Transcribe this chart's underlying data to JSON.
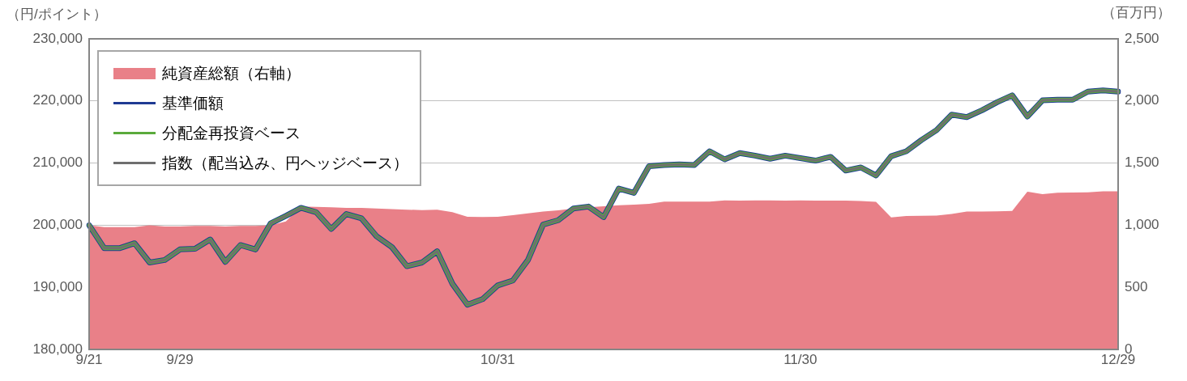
{
  "chart_data": {
    "type": "line",
    "ylabel": "（円/ポイント）",
    "y2label": "（百万円）",
    "categories": [
      "9/21",
      null,
      null,
      null,
      null,
      null,
      "9/29",
      null,
      null,
      null,
      null,
      null,
      null,
      null,
      null,
      null,
      null,
      null,
      null,
      null,
      null,
      null,
      null,
      null,
      null,
      null,
      null,
      "10/31",
      null,
      null,
      null,
      null,
      null,
      null,
      null,
      null,
      null,
      null,
      null,
      null,
      null,
      null,
      null,
      null,
      null,
      null,
      null,
      "11/30",
      null,
      null,
      null,
      null,
      null,
      null,
      null,
      null,
      null,
      null,
      null,
      null,
      null,
      null,
      null,
      null,
      null,
      null,
      null,
      null,
      "12/29"
    ],
    "series": [
      {
        "name": "純資産総額（右軸）",
        "type": "area",
        "axis": "y2",
        "color": "#e98088",
        "values": [
          1000,
          985,
          985,
          985,
          1000,
          990,
          990,
          995,
          995,
          990,
          995,
          995,
          1000,
          1030,
          1150,
          1148,
          1144,
          1140,
          1140,
          1135,
          1130,
          1125,
          1122,
          1125,
          1105,
          1068,
          1066,
          1068,
          1080,
          1095,
          1110,
          1120,
          1135,
          1145,
          1152,
          1160,
          1165,
          1172,
          1190,
          1190,
          1190,
          1190,
          1200,
          1198,
          1200,
          1200,
          1198,
          1200,
          1198,
          1198,
          1198,
          1195,
          1188,
          1063,
          1075,
          1076,
          1078,
          1090,
          1110,
          1110,
          1112,
          1115,
          1270,
          1250,
          1262,
          1263,
          1265,
          1272,
          1272
        ]
      },
      {
        "name": "基準価額",
        "color": "#1f3a93",
        "values": [
          200000,
          196300,
          196300,
          197100,
          194000,
          194400,
          196100,
          196200,
          197700,
          194100,
          196800,
          196100,
          200300,
          201500,
          202800,
          202100,
          199400,
          201800,
          201100,
          198200,
          196500,
          193400,
          194000,
          195800,
          190600,
          187200,
          188100,
          190300,
          191100,
          194400,
          200100,
          200800,
          202700,
          203000,
          201300,
          205900,
          205200,
          209500,
          209700,
          209800,
          209700,
          211900,
          210600,
          211600,
          211200,
          210700,
          211200,
          210800,
          210400,
          211000,
          208800,
          209300,
          208000,
          211100,
          211900,
          213700,
          215300,
          217800,
          217400,
          218500,
          219800,
          220900,
          217500,
          220100,
          220200,
          220200,
          221500,
          221700,
          221500
        ]
      },
      {
        "name": "分配金再投資ベース",
        "color": "#5aaa3c",
        "values": [
          200000,
          196300,
          196300,
          197100,
          194000,
          194400,
          196100,
          196200,
          197700,
          194100,
          196800,
          196100,
          200300,
          201500,
          202800,
          202100,
          199400,
          201800,
          201100,
          198200,
          196500,
          193400,
          194000,
          195800,
          190600,
          187200,
          188100,
          190300,
          191100,
          194400,
          200100,
          200800,
          202700,
          203000,
          201300,
          205900,
          205200,
          209500,
          209700,
          209800,
          209700,
          211900,
          210600,
          211600,
          211200,
          210700,
          211200,
          210800,
          210400,
          211000,
          208800,
          209300,
          208000,
          211100,
          211900,
          213700,
          215300,
          217800,
          217400,
          218500,
          219800,
          220900,
          217500,
          220100,
          220200,
          220200,
          221500,
          221700,
          221500
        ]
      },
      {
        "name": "指数（配当込み、円ヘッジベース）",
        "color": "#6f6f6f",
        "values": [
          200000,
          196300,
          196300,
          197100,
          194000,
          194400,
          196100,
          196200,
          197700,
          194100,
          196800,
          196100,
          200300,
          201500,
          202800,
          202100,
          199400,
          201800,
          201100,
          198200,
          196500,
          193400,
          194000,
          195800,
          190600,
          187200,
          188100,
          190300,
          191100,
          194400,
          200100,
          200800,
          202700,
          203000,
          201300,
          205900,
          205200,
          209500,
          209700,
          209800,
          209700,
          211900,
          210600,
          211600,
          211200,
          210700,
          211200,
          210800,
          210400,
          211000,
          208800,
          209300,
          208000,
          211100,
          211900,
          213700,
          215300,
          217800,
          217400,
          218500,
          219800,
          220900,
          217500,
          220100,
          220200,
          220200,
          221500,
          221700,
          221500
        ]
      }
    ],
    "ylim": [
      180000,
      230000
    ],
    "yticks": [
      {
        "value": 180000,
        "label": "180,000"
      },
      {
        "value": 190000,
        "label": "190,000"
      },
      {
        "value": 200000,
        "label": "200,000"
      },
      {
        "value": 210000,
        "label": "210,000"
      },
      {
        "value": 220000,
        "label": "220,000"
      },
      {
        "value": 230000,
        "label": "230,000"
      }
    ],
    "y2lim": [
      0,
      2500
    ],
    "y2ticks": [
      0,
      500,
      {
        "value": 1000,
        "label": "1,000"
      },
      {
        "value": 1500,
        "label": "1,500"
      },
      {
        "value": 2000,
        "label": "2,000"
      },
      {
        "value": 2500,
        "label": "2,500"
      }
    ],
    "grid": "y",
    "legend": "top left"
  }
}
